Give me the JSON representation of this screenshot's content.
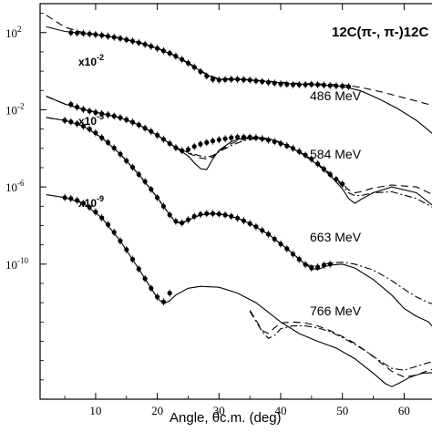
{
  "chart_data": {
    "type": "line",
    "title": "",
    "reaction_label": "12C(π-, π-)12C",
    "xlabel": "Angle, θc.m. (deg)",
    "ylabel": "",
    "xlim": [
      1,
      66
    ],
    "x_ticks": [
      10,
      20,
      30,
      40,
      50,
      60
    ],
    "x_tick_labels": [
      "10",
      "20",
      "30",
      "40",
      "50",
      "60"
    ],
    "y_scale": "log",
    "ylim_log10": [
      -17,
      3.5
    ],
    "y_ticks_log10": [
      2,
      -2,
      -6,
      -10
    ],
    "y_tick_labels": [
      "10",
      "10",
      "10",
      "10"
    ],
    "y_tick_exponents": [
      "2",
      "-2",
      "-6",
      "-10"
    ],
    "scale_labels": [
      {
        "base": "x10",
        "exp": "-2"
      },
      {
        "base": "x10",
        "exp": "-5"
      },
      {
        "base": "x10",
        "exp": "-9"
      }
    ],
    "energy_labels": [
      "486 MeV",
      "584 MeV",
      "663 MeV",
      "766 MeV"
    ],
    "curve_styles": [
      "solid",
      "dashed",
      "dash-dot"
    ],
    "series": [
      {
        "energy": "486 MeV",
        "data_points": {
          "x": [
            6,
            7,
            8,
            9,
            10,
            11,
            12,
            13,
            14,
            15,
            16,
            17,
            18,
            19,
            20,
            21,
            22,
            23,
            24,
            25,
            26,
            27,
            28,
            29,
            30,
            31,
            32,
            33,
            34,
            35,
            36,
            37,
            38,
            39,
            40,
            41,
            42,
            43,
            44,
            45,
            46,
            47,
            48,
            49,
            50,
            51
          ],
          "y_log10": [
            2.0,
            1.98,
            1.96,
            1.93,
            1.9,
            1.86,
            1.81,
            1.76,
            1.7,
            1.63,
            1.56,
            1.48,
            1.39,
            1.29,
            1.18,
            1.06,
            0.93,
            0.78,
            0.61,
            0.42,
            0.21,
            -0.02,
            -0.25,
            -0.42,
            -0.46,
            -0.44,
            -0.42,
            -0.42,
            -0.44,
            -0.46,
            -0.5,
            -0.54,
            -0.58,
            -0.62,
            -0.66,
            -0.68,
            -0.7,
            -0.7,
            -0.7,
            -0.68,
            -0.7,
            -0.72,
            -0.74,
            -0.76,
            -0.78,
            -0.8
          ]
        },
        "curves": [
          {
            "style": "solid",
            "x": [
              2,
              5,
              8,
              11,
              14,
              17,
              20,
              23,
              26,
              28,
              30,
              32,
              34,
              38,
              42,
              46,
              50,
              53,
              56,
              59,
              62,
              66
            ],
            "y_log10": [
              2.3,
              2.06,
              1.96,
              1.86,
              1.7,
              1.48,
              1.18,
              0.78,
              0.21,
              -0.2,
              -0.44,
              -0.42,
              -0.44,
              -0.54,
              -0.66,
              -0.7,
              -0.79,
              -1.02,
              -1.45,
              -1.95,
              -2.55,
              -3.6
            ]
          },
          {
            "style": "dashed",
            "x": [
              2,
              5,
              8,
              11,
              14,
              17,
              20,
              23,
              26,
              28,
              30,
              32,
              34,
              38,
              42,
              46,
              50,
              53,
              56,
              59,
              62,
              66
            ],
            "y_log10": [
              2.9,
              2.28,
              2.0,
              1.88,
              1.72,
              1.5,
              1.2,
              0.8,
              0.25,
              -0.16,
              -0.4,
              -0.4,
              -0.42,
              -0.52,
              -0.62,
              -0.66,
              -0.7,
              -0.84,
              -1.05,
              -1.3,
              -1.55,
              -1.9
            ]
          }
        ]
      },
      {
        "energy": "584 MeV",
        "data_points": {
          "x": [
            6,
            7,
            8,
            9,
            10,
            11,
            12,
            13,
            14,
            15,
            16,
            17,
            18,
            19,
            20,
            21,
            22,
            23,
            24,
            25,
            26,
            27,
            28,
            29,
            30,
            31,
            32,
            33,
            34,
            35,
            36,
            37,
            38,
            39,
            40,
            41,
            42,
            43,
            44,
            45,
            46,
            47,
            48,
            49,
            50
          ],
          "y_log10": [
            -1.72,
            -1.86,
            -1.98,
            -2.07,
            -2.14,
            -2.2,
            -2.26,
            -2.33,
            -2.41,
            -2.52,
            -2.64,
            -2.78,
            -2.95,
            -3.12,
            -3.32,
            -3.53,
            -3.75,
            -3.97,
            -4.12,
            -4.06,
            -3.9,
            -3.78,
            -3.7,
            -3.62,
            -3.55,
            -3.5,
            -3.45,
            -3.42,
            -3.42,
            -3.42,
            -3.45,
            -3.5,
            -3.57,
            -3.65,
            -3.75,
            -3.87,
            -4.0,
            -4.16,
            -4.35,
            -4.55,
            -4.8,
            -5.08,
            -5.35,
            -5.6,
            -5.85
          ]
        },
        "curves": [
          {
            "style": "solid",
            "x": [
              2,
              5,
              8,
              11,
              14,
              17,
              20,
              23,
              25,
              26,
              27,
              28,
              29,
              30,
              32,
              34,
              36,
              38,
              40,
              42,
              44,
              46,
              48,
              50,
              51,
              52,
              53,
              55,
              58,
              62,
              66
            ],
            "y_log10": [
              -1.3,
              -1.7,
              -1.98,
              -2.2,
              -2.41,
              -2.78,
              -3.32,
              -3.97,
              -4.4,
              -4.75,
              -5.05,
              -5.1,
              -4.55,
              -4.1,
              -3.65,
              -3.45,
              -3.42,
              -3.5,
              -3.7,
              -4.0,
              -4.4,
              -4.85,
              -5.4,
              -6.1,
              -6.6,
              -6.85,
              -6.65,
              -6.3,
              -6.0,
              -6.3,
              -7.3
            ]
          },
          {
            "style": "dashed",
            "x": [
              2,
              5,
              8,
              11,
              14,
              17,
              20,
              23,
              25,
              27,
              28,
              29,
              30,
              32,
              34,
              36,
              38,
              40,
              42,
              44,
              46,
              48,
              50,
              51,
              52,
              53,
              55,
              58,
              62,
              66
            ],
            "y_log10": [
              -1.3,
              -1.7,
              -1.98,
              -2.2,
              -2.41,
              -2.78,
              -3.32,
              -3.95,
              -4.25,
              -4.5,
              -4.55,
              -4.45,
              -4.15,
              -3.75,
              -3.52,
              -3.45,
              -3.5,
              -3.68,
              -3.98,
              -4.35,
              -4.8,
              -5.3,
              -5.85,
              -6.15,
              -6.3,
              -6.25,
              -6.05,
              -5.9,
              -6.0,
              -6.6
            ]
          },
          {
            "style": "dash-dot",
            "x": [
              2,
              5,
              8,
              11,
              14,
              17,
              20,
              23,
              25,
              27,
              28,
              29,
              30,
              32,
              34,
              36,
              38,
              40,
              42,
              44,
              46,
              48,
              50,
              51,
              52,
              53,
              55,
              58,
              62,
              66
            ],
            "y_log10": [
              -1.3,
              -1.7,
              -1.98,
              -2.2,
              -2.41,
              -2.78,
              -3.32,
              -3.95,
              -4.22,
              -4.4,
              -4.45,
              -4.38,
              -4.18,
              -3.85,
              -3.6,
              -3.5,
              -3.55,
              -3.72,
              -4.02,
              -4.4,
              -4.85,
              -5.35,
              -5.95,
              -6.3,
              -6.45,
              -6.45,
              -6.3,
              -6.25,
              -6.6,
              -7.3
            ]
          }
        ]
      },
      {
        "energy": "663 MeV",
        "data_points": {
          "x": [
            5,
            6,
            7,
            8,
            9,
            10,
            11,
            12,
            13,
            14,
            15,
            16,
            17,
            18,
            19,
            20,
            21,
            22,
            23,
            24,
            25,
            26,
            27,
            28,
            29,
            30,
            31,
            32,
            33,
            34,
            35,
            36,
            37,
            38,
            39,
            40,
            41,
            42,
            43,
            44,
            45,
            46,
            47,
            48
          ],
          "y_log10": [
            -2.55,
            -2.62,
            -2.72,
            -2.85,
            -3.0,
            -3.2,
            -3.45,
            -3.7,
            -3.98,
            -4.3,
            -4.65,
            -4.98,
            -5.35,
            -5.72,
            -6.12,
            -6.55,
            -7.0,
            -7.45,
            -7.78,
            -7.86,
            -7.7,
            -7.52,
            -7.42,
            -7.38,
            -7.38,
            -7.4,
            -7.45,
            -7.52,
            -7.62,
            -7.75,
            -7.9,
            -8.06,
            -8.25,
            -8.45,
            -8.7,
            -8.95,
            -9.2,
            -9.48,
            -9.75,
            -10.02,
            -10.2,
            -10.15,
            -10.05,
            -10.0
          ]
        },
        "curves": [
          {
            "style": "solid",
            "x": [
              2,
              5,
              8,
              11,
              14,
              17,
              20,
              22,
              23,
              24,
              25,
              27,
              29,
              31,
              33,
              35,
              38,
              41,
              44,
              45,
              46,
              47,
              48,
              50,
              52,
              55,
              58,
              60,
              62,
              64,
              66
            ],
            "y_log10": [
              -2.4,
              -2.55,
              -2.85,
              -3.45,
              -4.3,
              -5.35,
              -6.55,
              -7.45,
              -7.82,
              -7.9,
              -7.72,
              -7.45,
              -7.38,
              -7.45,
              -7.62,
              -7.9,
              -8.45,
              -9.2,
              -10.02,
              -10.22,
              -10.28,
              -10.15,
              -10.05,
              -10.0,
              -10.2,
              -10.8,
              -11.6,
              -12.3,
              -12.7,
              -13.0,
              -13.8
            ]
          },
          {
            "style": "dash-dot",
            "x": [
              2,
              5,
              8,
              11,
              14,
              17,
              20,
              22,
              23,
              24,
              25,
              27,
              29,
              31,
              33,
              35,
              38,
              41,
              44,
              45,
              46,
              47,
              48,
              50,
              52,
              55,
              58,
              60,
              62,
              64,
              66
            ],
            "y_log10": [
              -2.4,
              -2.55,
              -2.85,
              -3.45,
              -4.3,
              -5.35,
              -6.55,
              -7.45,
              -7.8,
              -7.86,
              -7.7,
              -7.45,
              -7.38,
              -7.45,
              -7.62,
              -7.9,
              -8.45,
              -9.2,
              -10.0,
              -10.1,
              -10.1,
              -10.0,
              -9.95,
              -9.9,
              -10.0,
              -10.3,
              -10.85,
              -11.3,
              -11.7,
              -12.0,
              -12.2
            ]
          }
        ]
      },
      {
        "energy": "766 MeV",
        "data_points": {
          "x": [
            5,
            6,
            7,
            8,
            9,
            10,
            11,
            12,
            13,
            14,
            15,
            16,
            17,
            18,
            19,
            20,
            21,
            22
          ],
          "y_log10": [
            -6.55,
            -6.6,
            -6.7,
            -6.85,
            -7.05,
            -7.3,
            -7.6,
            -7.95,
            -8.35,
            -8.8,
            -9.25,
            -9.75,
            -10.25,
            -10.75,
            -11.25,
            -11.7,
            -11.95,
            -11.5
          ]
        },
        "curves": [
          {
            "style": "solid",
            "x": [
              2,
              5,
              8,
              11,
              14,
              17,
              19,
              20,
              21,
              22,
              23,
              25,
              27,
              30,
              33,
              36,
              38,
              40,
              43,
              46,
              49,
              52,
              55,
              57,
              58,
              59,
              61,
              63,
              66
            ],
            "y_log10": [
              -6.4,
              -6.55,
              -6.85,
              -7.6,
              -8.8,
              -10.25,
              -11.25,
              -11.75,
              -12.05,
              -11.9,
              -11.6,
              -11.25,
              -11.15,
              -11.2,
              -11.5,
              -12.0,
              -12.5,
              -13.0,
              -13.6,
              -14.0,
              -14.35,
              -14.9,
              -15.65,
              -16.2,
              -16.35,
              -16.2,
              -15.85,
              -15.65,
              -15.6
            ]
          },
          {
            "style": "dashed",
            "x": [
              35,
              36,
              37,
              38,
              39,
              40,
              42,
              44,
              46,
              48,
              50,
              52,
              54,
              56,
              58,
              60,
              62,
              64,
              66
            ],
            "y_log10": [
              -12.4,
              -12.9,
              -13.45,
              -13.6,
              -13.3,
              -13.05,
              -13.0,
              -13.05,
              -13.2,
              -13.45,
              -13.75,
              -14.1,
              -14.55,
              -15.05,
              -15.55,
              -15.85,
              -15.75,
              -15.5,
              -15.35
            ]
          },
          {
            "style": "dash-dot",
            "x": [
              35,
              36,
              37,
              38,
              39,
              40,
              42,
              44,
              46,
              48,
              50,
              52,
              54,
              56,
              58,
              60,
              62,
              64,
              66
            ],
            "y_log10": [
              -12.45,
              -12.95,
              -13.5,
              -13.85,
              -13.7,
              -13.35,
              -13.2,
              -13.2,
              -13.3,
              -13.5,
              -13.8,
              -14.15,
              -14.55,
              -15.0,
              -15.4,
              -15.5,
              -15.3,
              -15.1,
              -15.0
            ]
          }
        ]
      }
    ]
  }
}
